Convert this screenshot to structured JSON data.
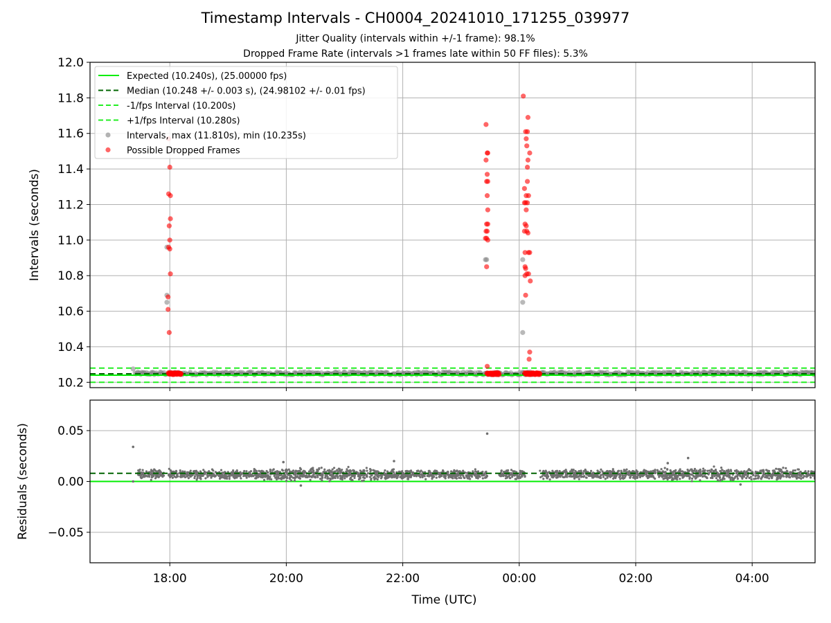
{
  "title": "Timestamp Intervals - CH0004_20241010_171255_039977",
  "subtitle1": "Jitter Quality (intervals within +/-1 frame): 98.1%",
  "subtitle2": "Dropped Frame Rate (intervals >1 frames late within 50 FF files): 5.3%",
  "colors": {
    "expected": "#00ee00",
    "median": "#006400",
    "fps_band": "#22ee22",
    "intervals": "#808080",
    "dropped": "#ff0000"
  },
  "chart_data": [
    {
      "type": "scatter",
      "panel": "intervals",
      "ylabel": "Intervals (seconds)",
      "ylim": [
        10.17,
        12.0
      ],
      "yticks": [
        10.2,
        10.4,
        10.6,
        10.8,
        11.0,
        11.2,
        11.4,
        11.6,
        11.8,
        12.0
      ],
      "ytick_labels": [
        "10.2",
        "10.4",
        "10.6",
        "10.8",
        "11.0",
        "11.2",
        "11.4",
        "11.6",
        "11.8",
        "12.0"
      ],
      "xlim_hours": [
        16.63,
        29.08
      ],
      "grid": true,
      "legend_position": "upper-left",
      "legend": [
        {
          "label": "Expected (10.240s), (25.00000 fps)",
          "kind": "line",
          "color": "#00ee00"
        },
        {
          "label": "Median (10.248 +/- 0.003 s), (24.98102 +/- 0.01 fps)",
          "kind": "dashed",
          "color": "#006400"
        },
        {
          "label": "-1/fps Interval (10.200s)",
          "kind": "dashed",
          "color": "#22ee22"
        },
        {
          "label": "+1/fps Interval (10.280s)",
          "kind": "dashed",
          "color": "#22ee22"
        },
        {
          "label": "Intervals, max (11.810s), min (10.235s)",
          "kind": "marker",
          "color": "#808080"
        },
        {
          "label": "Possible Dropped Frames",
          "kind": "marker",
          "color": "#ff0000"
        }
      ],
      "reference_lines": {
        "expected": 10.24,
        "median": 10.248,
        "minus_1fps": 10.2,
        "plus_1fps": 10.28
      },
      "interval_band": {
        "x_start_hours": 17.4,
        "x_end_hours": 29.08,
        "y_min": 10.24,
        "y_max": 10.26
      },
      "intervals_outliers": [
        {
          "x": 17.95,
          "y": 10.69
        },
        {
          "x": 17.95,
          "y": 10.65
        },
        {
          "x": 17.95,
          "y": 10.96
        },
        {
          "x": 23.42,
          "y": 10.89
        },
        {
          "x": 23.44,
          "y": 10.89
        },
        {
          "x": 24.06,
          "y": 10.89
        },
        {
          "x": 24.06,
          "y": 10.65
        },
        {
          "x": 24.06,
          "y": 10.48
        },
        {
          "x": 17.37,
          "y": 10.275
        }
      ],
      "dropped_frames": [
        {
          "x": 17.98,
          "y": 11.57
        },
        {
          "x": 18.0,
          "y": 11.41
        },
        {
          "x": 17.98,
          "y": 11.26
        },
        {
          "x": 18.01,
          "y": 11.25
        },
        {
          "x": 18.01,
          "y": 11.12
        },
        {
          "x": 17.99,
          "y": 11.08
        },
        {
          "x": 18.0,
          "y": 11.0
        },
        {
          "x": 17.98,
          "y": 10.96
        },
        {
          "x": 18.0,
          "y": 10.95
        },
        {
          "x": 18.01,
          "y": 10.81
        },
        {
          "x": 17.97,
          "y": 10.68
        },
        {
          "x": 17.97,
          "y": 10.61
        },
        {
          "x": 17.99,
          "y": 10.48
        },
        {
          "x": 23.43,
          "y": 11.65
        },
        {
          "x": 23.45,
          "y": 11.49
        },
        {
          "x": 23.46,
          "y": 11.49
        },
        {
          "x": 23.43,
          "y": 11.45
        },
        {
          "x": 23.45,
          "y": 11.37
        },
        {
          "x": 23.44,
          "y": 11.33
        },
        {
          "x": 23.46,
          "y": 11.33
        },
        {
          "x": 23.45,
          "y": 11.25
        },
        {
          "x": 23.46,
          "y": 11.17
        },
        {
          "x": 23.44,
          "y": 11.09
        },
        {
          "x": 23.46,
          "y": 11.09
        },
        {
          "x": 23.43,
          "y": 11.05
        },
        {
          "x": 23.45,
          "y": 11.05
        },
        {
          "x": 23.42,
          "y": 11.01
        },
        {
          "x": 23.44,
          "y": 11.01
        },
        {
          "x": 23.46,
          "y": 11.0
        },
        {
          "x": 23.44,
          "y": 10.85
        },
        {
          "x": 23.45,
          "y": 10.29
        },
        {
          "x": 24.07,
          "y": 11.81
        },
        {
          "x": 24.15,
          "y": 11.69
        },
        {
          "x": 24.11,
          "y": 11.61
        },
        {
          "x": 24.14,
          "y": 11.61
        },
        {
          "x": 24.12,
          "y": 11.57
        },
        {
          "x": 24.13,
          "y": 11.53
        },
        {
          "x": 24.18,
          "y": 11.49
        },
        {
          "x": 24.15,
          "y": 11.45
        },
        {
          "x": 24.14,
          "y": 11.41
        },
        {
          "x": 24.14,
          "y": 11.33
        },
        {
          "x": 24.09,
          "y": 11.29
        },
        {
          "x": 24.12,
          "y": 11.25
        },
        {
          "x": 24.16,
          "y": 11.25
        },
        {
          "x": 24.09,
          "y": 11.21
        },
        {
          "x": 24.11,
          "y": 11.21
        },
        {
          "x": 24.14,
          "y": 11.21
        },
        {
          "x": 24.12,
          "y": 11.17
        },
        {
          "x": 24.1,
          "y": 11.09
        },
        {
          "x": 24.12,
          "y": 11.08
        },
        {
          "x": 24.09,
          "y": 11.05
        },
        {
          "x": 24.13,
          "y": 11.05
        },
        {
          "x": 24.15,
          "y": 11.04
        },
        {
          "x": 24.1,
          "y": 10.93
        },
        {
          "x": 24.16,
          "y": 10.93
        },
        {
          "x": 24.18,
          "y": 10.93
        },
        {
          "x": 24.1,
          "y": 10.85
        },
        {
          "x": 24.11,
          "y": 10.84
        },
        {
          "x": 24.13,
          "y": 10.81
        },
        {
          "x": 24.1,
          "y": 10.8
        },
        {
          "x": 24.16,
          "y": 10.81
        },
        {
          "x": 24.19,
          "y": 10.77
        },
        {
          "x": 24.11,
          "y": 10.69
        },
        {
          "x": 24.18,
          "y": 10.37
        },
        {
          "x": 24.17,
          "y": 10.33
        }
      ],
      "dropped_clusters": [
        {
          "x_start_hours": 17.98,
          "x_end_hours": 18.19,
          "y": 10.248
        },
        {
          "x_start_hours": 23.45,
          "x_end_hours": 23.65,
          "y": 10.248
        },
        {
          "x_start_hours": 24.1,
          "x_end_hours": 24.35,
          "y": 10.248
        }
      ]
    },
    {
      "type": "scatter",
      "panel": "residuals",
      "xlabel": "Time (UTC)",
      "ylabel": "Residuals (seconds)",
      "ylim": [
        -0.08,
        0.08
      ],
      "yticks": [
        -0.05,
        0.0,
        0.05
      ],
      "ytick_labels": [
        "−0.05",
        "0.00",
        "0.05"
      ],
      "xlim_hours": [
        16.63,
        29.08
      ],
      "xticks_hours": [
        18,
        20,
        22,
        24,
        26,
        28
      ],
      "xtick_labels": [
        "18:00",
        "20:00",
        "22:00",
        "00:00",
        "02:00",
        "04:00"
      ],
      "grid": true,
      "reference_lines": {
        "zero": 0.0,
        "median": 0.008
      },
      "residual_band": {
        "x_start_hours": 17.45,
        "x_end_hours": 29.08,
        "center": 0.007,
        "spread": 0.006
      },
      "residual_gaps_hours": [
        [
          17.9,
          17.98
        ],
        [
          23.45,
          23.65
        ],
        [
          24.1,
          24.35
        ]
      ],
      "residual_outliers": [
        {
          "x": 17.37,
          "y": 0.034
        },
        {
          "x": 23.45,
          "y": 0.047
        },
        {
          "x": 17.37,
          "y": 0.0
        },
        {
          "x": 21.85,
          "y": 0.02
        },
        {
          "x": 26.9,
          "y": 0.023
        },
        {
          "x": 19.95,
          "y": 0.019
        },
        {
          "x": 20.25,
          "y": -0.004
        },
        {
          "x": 27.8,
          "y": -0.003
        },
        {
          "x": 26.55,
          "y": 0.018
        }
      ]
    }
  ]
}
